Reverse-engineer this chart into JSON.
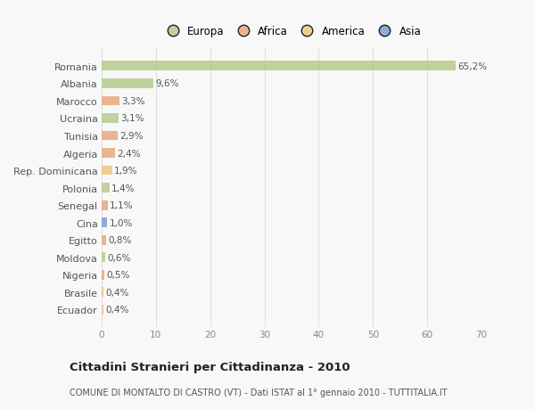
{
  "categories": [
    "Romania",
    "Albania",
    "Marocco",
    "Ucraina",
    "Tunisia",
    "Algeria",
    "Rep. Dominicana",
    "Polonia",
    "Senegal",
    "Cina",
    "Egitto",
    "Moldova",
    "Nigeria",
    "Brasile",
    "Ecuador"
  ],
  "values": [
    65.2,
    9.6,
    3.3,
    3.1,
    2.9,
    2.4,
    1.9,
    1.4,
    1.1,
    1.0,
    0.8,
    0.6,
    0.5,
    0.4,
    0.4
  ],
  "labels": [
    "65,2%",
    "9,6%",
    "3,3%",
    "3,1%",
    "2,9%",
    "2,4%",
    "1,9%",
    "1,4%",
    "1,1%",
    "1,0%",
    "0,8%",
    "0,6%",
    "0,5%",
    "0,4%",
    "0,4%"
  ],
  "colors": [
    "#b5cc8e",
    "#b5cc8e",
    "#e8a97e",
    "#b5cc8e",
    "#e8a97e",
    "#e8a97e",
    "#e8c97e",
    "#b5cc8e",
    "#e8a97e",
    "#7b9fcf",
    "#e8a97e",
    "#b5cc8e",
    "#e8a97e",
    "#e8c97e",
    "#e8c97e"
  ],
  "legend_labels": [
    "Europa",
    "Africa",
    "America",
    "Asia"
  ],
  "legend_colors": [
    "#b5cc8e",
    "#e8a97e",
    "#e8c97e",
    "#7b9fcf"
  ],
  "title": "Cittadini Stranieri per Cittadinanza - 2010",
  "subtitle": "COMUNE DI MONTALTO DI CASTRO (VT) - Dati ISTAT al 1° gennaio 2010 - TUTTITALIA.IT",
  "xlim": [
    0,
    70
  ],
  "xticks": [
    0,
    10,
    20,
    30,
    40,
    50,
    60,
    70
  ],
  "bg_color": "#f8f8f8",
  "grid_color": "#dddddd",
  "bar_height": 0.55
}
